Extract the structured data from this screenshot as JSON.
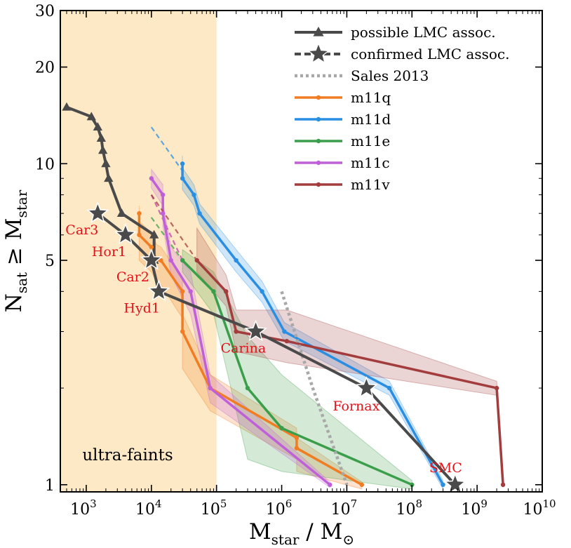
{
  "chart_data": {
    "type": "line",
    "xscale": "log",
    "yscale": "log",
    "xlim": [
      400,
      10000000000
    ],
    "ylim": [
      0.95,
      30
    ],
    "xlabel": "M_star / M_⊙",
    "ylabel": "N_sat ≥ M_star",
    "x_ticks": [
      {
        "value": 1000,
        "base": "10",
        "exp": "3"
      },
      {
        "value": 10000,
        "base": "10",
        "exp": "4"
      },
      {
        "value": 100000,
        "base": "10",
        "exp": "5"
      },
      {
        "value": 1000000,
        "base": "10",
        "exp": "6"
      },
      {
        "value": 10000000,
        "base": "10",
        "exp": "7"
      },
      {
        "value": 100000000,
        "base": "10",
        "exp": "8"
      },
      {
        "value": 1000000000,
        "base": "10",
        "exp": "9"
      },
      {
        "value": 10000000000,
        "base": "10",
        "exp": "10"
      }
    ],
    "y_ticks": [
      {
        "value": 1,
        "label": "1"
      },
      {
        "value": 5,
        "label": "5"
      },
      {
        "value": 10,
        "label": "10"
      },
      {
        "value": 20,
        "label": "20"
      },
      {
        "value": 30,
        "label": "30"
      }
    ],
    "shaded_region": {
      "x": [
        400,
        100000
      ],
      "label": "ultra-faints",
      "color": "#fde9c5"
    },
    "colors": {
      "lmc": "#4a4a4a",
      "sales": "#a8a8a8",
      "m11q": "#f07d23",
      "m11d": "#2a8ee3",
      "m11e": "#3b9e4a",
      "m11c": "#c060d9",
      "m11v": "#a33c3c",
      "annotation": "#e3121b"
    },
    "series": [
      {
        "name": "m11q",
        "color": "#f07d23",
        "x": [
          6500,
          6500,
          10000,
          12000,
          14000,
          30000,
          30000,
          80000,
          1700000,
          1700000,
          17000000
        ],
        "y": [
          7,
          6,
          5.5,
          5,
          5,
          4,
          3,
          2,
          1.4,
          1.3,
          1
        ],
        "band_lo": [
          6,
          5,
          4.6,
          4.3,
          4.2,
          3.3,
          2.3,
          1.7,
          1.2,
          1.1,
          0.97
        ],
        "band_hi": [
          7.4,
          6.6,
          6.1,
          5.6,
          5.5,
          4.4,
          3.4,
          2.2,
          1.5,
          1.4,
          1.02
        ],
        "extrap_x": [
          10000,
          30000
        ],
        "extrap_y": [
          8,
          5
        ]
      },
      {
        "name": "m11d",
        "color": "#2a8ee3",
        "x": [
          30000,
          30000,
          45000,
          55000,
          200000,
          500000,
          1100000,
          45000000,
          300000000
        ],
        "y": [
          10,
          9,
          8,
          7,
          5,
          4,
          3,
          2,
          1
        ],
        "band_lo": [
          9,
          8.3,
          7.4,
          6.5,
          4.6,
          3.7,
          2.8,
          1.9,
          0.97
        ],
        "band_hi": [
          10.6,
          9.7,
          8.6,
          7.5,
          5.4,
          4.3,
          3.2,
          2.1,
          1.03
        ],
        "extrap_x": [
          10000,
          30000
        ],
        "extrap_y": [
          13,
          9.5
        ]
      },
      {
        "name": "m11e",
        "color": "#3b9e4a",
        "x": [
          30000,
          90000,
          300000,
          1000000,
          100000000
        ],
        "y": [
          5,
          4,
          2,
          1.5,
          1
        ],
        "band_lo": [
          4.6,
          3.4,
          1.2,
          1.1,
          0.97
        ],
        "band_hi": [
          5.4,
          4.6,
          2.9,
          2.2,
          1.03
        ],
        "extrap_x": [
          10000,
          30000
        ],
        "extrap_y": [
          6.8,
          5
        ]
      },
      {
        "name": "m11c",
        "color": "#c060d9",
        "x": [
          10000,
          15000,
          15000,
          20000,
          40000,
          80000,
          5500000
        ],
        "y": [
          9,
          8,
          7,
          5,
          4,
          2,
          1
        ],
        "band_lo": [
          8.4,
          7.4,
          6.4,
          4.5,
          3.4,
          1.8,
          0.98
        ],
        "band_hi": [
          9.6,
          8.6,
          7.6,
          5.5,
          4.6,
          2.2,
          1.02
        ],
        "extrap_x": [
          10000,
          30000
        ],
        "extrap_y": [
          8,
          5
        ]
      },
      {
        "name": "m11v",
        "color": "#a33c3c",
        "x": [
          50000,
          140000,
          200000,
          1200000,
          2000000000,
          2500000000
        ],
        "y": [
          5,
          4,
          3,
          2.8,
          2,
          1
        ],
        "band_lo": [
          4.6,
          3.6,
          2.6,
          2.4,
          1.9,
          0.98
        ],
        "band_hi": [
          6.3,
          4.5,
          3.5,
          3.5,
          2.1,
          1.02
        ],
        "extrap_x": [
          10000,
          50000
        ],
        "extrap_y": [
          8,
          5
        ]
      },
      {
        "name": "possible LMC assoc.",
        "color": "#4a4a4a",
        "marker": "triangle",
        "x": [
          500,
          1200,
          1500,
          1700,
          1800,
          2000,
          2200,
          3500,
          11000,
          11000
        ],
        "y": [
          15,
          14,
          13,
          12,
          11,
          10,
          9,
          7,
          6,
          5
        ]
      },
      {
        "name": "confirmed LMC assoc.",
        "color": "#4a4a4a",
        "marker": "star",
        "x": [
          1500,
          4000,
          10000,
          13000,
          400000,
          20000000,
          460000000
        ],
        "y": [
          7,
          6,
          5,
          4,
          3,
          2,
          1
        ],
        "labels": [
          "Car3",
          "Hor1",
          "Car2",
          "Hyd1",
          "Carina",
          "Fornax",
          "SMC"
        ]
      },
      {
        "name": "Sales 2013",
        "color": "#a8a8a8",
        "style": "dotted",
        "x": [
          1000000,
          3000000,
          10000000
        ],
        "y": [
          4,
          2,
          1
        ]
      }
    ],
    "legend": {
      "position": "top-right",
      "entries": [
        {
          "label": "possible LMC assoc.",
          "key": "possible LMC assoc."
        },
        {
          "label": "confirmed LMC assoc.",
          "key": "confirmed LMC assoc."
        },
        {
          "label": "Sales 2013",
          "key": "Sales 2013"
        },
        {
          "label": "m11q",
          "key": "m11q"
        },
        {
          "label": "m11d",
          "key": "m11d"
        },
        {
          "label": "m11e",
          "key": "m11e"
        },
        {
          "label": "m11c",
          "key": "m11c"
        },
        {
          "label": "m11v",
          "key": "m11v"
        }
      ]
    }
  }
}
